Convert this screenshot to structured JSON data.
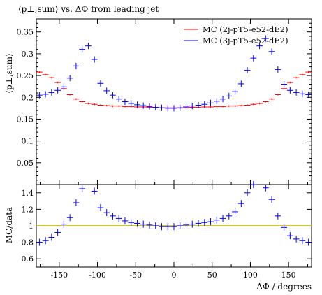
{
  "title": "⟨p⊥,sum⟩ vs. ΔΦ from leading jet",
  "chart_data": {
    "type": "scatter",
    "x": [
      -176,
      -168,
      -160,
      -152,
      -144,
      -136,
      -128,
      -120,
      -112,
      -104,
      -96,
      -88,
      -80,
      -72,
      -64,
      -56,
      -48,
      -40,
      -32,
      -24,
      -16,
      -8,
      0,
      8,
      16,
      24,
      32,
      40,
      48,
      56,
      64,
      72,
      80,
      88,
      96,
      104,
      112,
      120,
      128,
      136,
      144,
      152,
      160,
      168,
      176
    ],
    "series": [
      {
        "name": "MC (2j-pT5-e52-dE2)",
        "color": "#ff0000",
        "values": [
          0.258,
          0.252,
          0.245,
          0.234,
          0.22,
          0.206,
          0.196,
          0.19,
          0.186,
          0.184,
          0.182,
          0.181,
          0.18,
          0.18,
          0.179,
          0.179,
          0.178,
          0.178,
          0.177,
          0.177,
          0.176,
          0.176,
          0.176,
          0.176,
          0.176,
          0.177,
          0.177,
          0.178,
          0.178,
          0.179,
          0.179,
          0.18,
          0.18,
          0.181,
          0.182,
          0.184,
          0.186,
          0.19,
          0.196,
          0.206,
          0.22,
          0.234,
          0.245,
          0.252,
          0.258
        ]
      },
      {
        "name": "MC (3j-pT5-e52-dE2)",
        "color": "#0000ff",
        "values": [
          0.205,
          0.207,
          0.211,
          0.216,
          0.224,
          0.244,
          0.272,
          0.31,
          0.318,
          0.287,
          0.232,
          0.215,
          0.205,
          0.196,
          0.19,
          0.186,
          0.183,
          0.181,
          0.179,
          0.177,
          0.176,
          0.175,
          0.175,
          0.176,
          0.178,
          0.18,
          0.182,
          0.184,
          0.187,
          0.191,
          0.196,
          0.203,
          0.213,
          0.231,
          0.262,
          0.29,
          0.318,
          0.335,
          0.305,
          0.264,
          0.23,
          0.216,
          0.211,
          0.208,
          0.206
        ]
      }
    ],
    "xlabel": "ΔΦ / degrees",
    "ylabel": "⟨p⊥,sum⟩",
    "xlim": [
      -180,
      180
    ],
    "ylim": [
      0,
      0.38
    ],
    "xticks": [
      "-150",
      "-100",
      "-50",
      "0",
      "50",
      "100",
      "150"
    ],
    "xtick_values": [
      -150,
      -100,
      -50,
      0,
      50,
      100,
      150
    ],
    "yticks": [
      "0.05",
      "0.1",
      "0.15",
      "0.2",
      "0.25",
      "0.3",
      "0.35"
    ],
    "ytick_values": [
      0.05,
      0.1,
      0.15,
      0.2,
      0.25,
      0.3,
      0.35
    ],
    "legend_position": "top-right",
    "ratio_panel": {
      "ylabel": "MC/data",
      "ylim": [
        0.5,
        1.5
      ],
      "yticks": [
        "0.6",
        "0.8",
        "1",
        "1.2",
        "1.4"
      ],
      "ytick_values": [
        0.6,
        0.8,
        1.0,
        1.2,
        1.4
      ],
      "reference_value": 1.0,
      "reference_color": "#bfb200",
      "series_name": "MC (3j-pT5-e52-dE2)",
      "values": [
        0.8,
        0.82,
        0.86,
        0.92,
        1.02,
        1.1,
        1.28,
        1.45,
        1.55,
        1.42,
        1.22,
        1.16,
        1.12,
        1.09,
        1.06,
        1.04,
        1.03,
        1.02,
        1.01,
        1.0,
        0.99,
        0.99,
        0.99,
        1.0,
        1.01,
        1.02,
        1.03,
        1.04,
        1.05,
        1.07,
        1.09,
        1.12,
        1.17,
        1.27,
        1.4,
        1.5,
        1.52,
        1.46,
        1.32,
        1.12,
        0.98,
        0.88,
        0.84,
        0.82,
        0.8
      ]
    }
  }
}
